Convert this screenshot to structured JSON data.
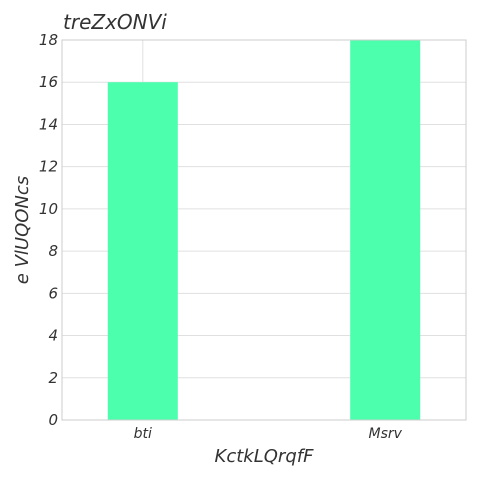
{
  "chart_data": {
    "type": "bar",
    "title": "treZxONVi",
    "xlabel": "KctkLQrqfF",
    "ylabel": "e VlUQONcs",
    "categories": [
      "bti",
      "Msrv"
    ],
    "values": [
      16,
      18
    ],
    "ylim": [
      0,
      18
    ],
    "yticks": [
      0,
      2,
      4,
      6,
      8,
      10,
      12,
      14,
      16,
      18
    ],
    "bar_color": "#4bffad",
    "grid": true,
    "legend": "none"
  }
}
